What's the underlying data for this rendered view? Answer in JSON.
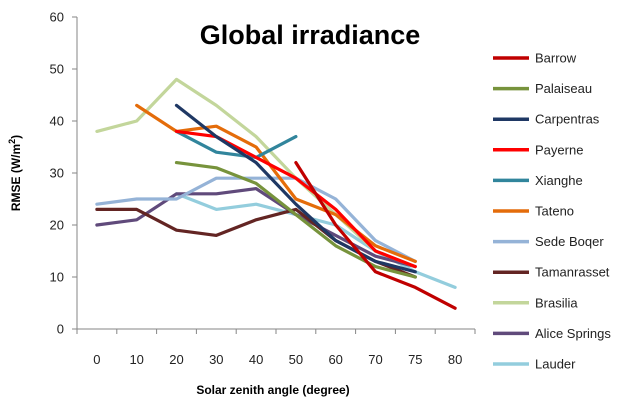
{
  "chart_data": {
    "type": "line",
    "title": "Global irradiance",
    "xlabel": "Solar zenith angle (degree)",
    "ylabel": "RMSE (W/m²)",
    "ylabel_main": "RMSE (W/m",
    "ylabel_sup": "2",
    "ylabel_end": ")",
    "categories": [
      "0",
      "10",
      "20",
      "30",
      "40",
      "50",
      "60",
      "70",
      "75",
      "80"
    ],
    "yticks": [
      "0",
      "10",
      "20",
      "30",
      "40",
      "50",
      "60"
    ],
    "ylim": [
      0,
      60
    ],
    "grid": false,
    "legend_position": "right",
    "series": [
      {
        "name": "Barrow",
        "color": "#C00000",
        "values": [
          null,
          null,
          null,
          null,
          null,
          32,
          20,
          11,
          8,
          4
        ]
      },
      {
        "name": "Palaiseau",
        "color": "#77933C",
        "values": [
          null,
          null,
          32,
          31,
          28,
          22,
          16,
          12,
          10,
          null
        ]
      },
      {
        "name": "Carpentras",
        "color": "#1F3864",
        "values": [
          null,
          null,
          43,
          37,
          32,
          24,
          17,
          13,
          11,
          null
        ]
      },
      {
        "name": "Payerne",
        "color": "#FF0000",
        "values": [
          null,
          null,
          38,
          37,
          33,
          29,
          23,
          15,
          12,
          null
        ]
      },
      {
        "name": "Xianghe",
        "color": "#31859C",
        "values": [
          null,
          null,
          38,
          34,
          33,
          37,
          null,
          null,
          null,
          null
        ]
      },
      {
        "name": "Tateno",
        "color": "#E46C0A",
        "values": [
          null,
          43,
          38,
          39,
          35,
          25,
          22,
          16,
          13,
          null
        ]
      },
      {
        "name": "Sede Boqer",
        "color": "#95B3D7",
        "values": [
          24,
          25,
          25,
          29,
          29,
          29,
          25,
          17,
          13,
          null
        ]
      },
      {
        "name": "Tamanrasset",
        "color": "#632523",
        "values": [
          23,
          23,
          19,
          18,
          21,
          23,
          17,
          13,
          10,
          null
        ]
      },
      {
        "name": "Brasilia",
        "color": "#C3D69B",
        "values": [
          38,
          40,
          48,
          43,
          37,
          29,
          22,
          15,
          12,
          null
        ]
      },
      {
        "name": "Alice Springs",
        "color": "#604A7B",
        "values": [
          20,
          21,
          26,
          26,
          27,
          22,
          18,
          14,
          12,
          null
        ]
      },
      {
        "name": "Lauder",
        "color": "#93CDDD",
        "values": [
          null,
          null,
          26,
          23,
          24,
          22,
          20,
          15,
          11,
          8
        ]
      }
    ]
  }
}
